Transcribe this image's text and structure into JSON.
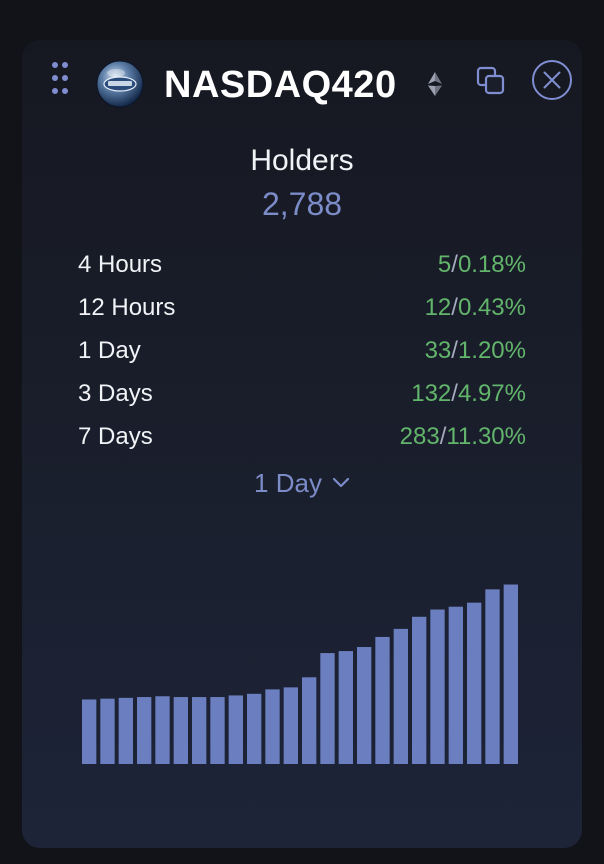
{
  "token": {
    "name": "NASDAQ420",
    "logo_icon": "nasdaq420-token-logo",
    "chain_icon": "ethereum-icon"
  },
  "toolbar": {
    "drag_icon": "drag-dots-icon",
    "copy_icon": "copy-icon",
    "close_icon": "close-circle-icon"
  },
  "holders": {
    "title": "Holders",
    "value": "2,788"
  },
  "stats": [
    {
      "label": "4 Hours",
      "count": "5",
      "percent": "0.18%"
    },
    {
      "label": "12 Hours",
      "count": "12",
      "percent": "0.43%"
    },
    {
      "label": "1 Day",
      "count": "33",
      "percent": "1.20%"
    },
    {
      "label": "3 Days",
      "count": "132",
      "percent": "4.97%"
    },
    {
      "label": "7 Days",
      "count": "283",
      "percent": "11.30%"
    }
  ],
  "period_select": {
    "selected": "1 Day",
    "icon": "chevron-down-icon"
  },
  "colors": {
    "accent": "#7b8cc8",
    "positive": "#62b56b",
    "bar": "#6b7fc0",
    "background": "#161821"
  },
  "chart_data": {
    "type": "bar",
    "title": "",
    "xlabel": "",
    "ylabel": "",
    "ylim": [
      2740,
      2800
    ],
    "values": [
      2756,
      2756.2,
      2756.4,
      2756.6,
      2756.8,
      2756.6,
      2756.6,
      2756.6,
      2757,
      2757.4,
      2758.5,
      2759,
      2761.5,
      2767.5,
      2768,
      2769,
      2771.5,
      2773.5,
      2776.5,
      2778.3,
      2779,
      2780,
      2783.3,
      2784.5
    ]
  }
}
